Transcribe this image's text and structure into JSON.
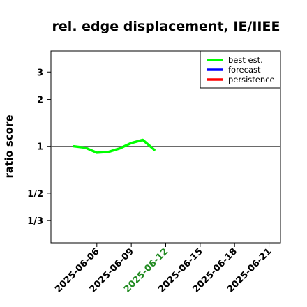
{
  "chart_data": {
    "type": "line",
    "title": "rel. edge displacement, IE/IIEE",
    "xlabel": "",
    "ylabel": "ratio score",
    "y_scale": "log",
    "y_ticks": [
      {
        "value": 3,
        "label": "3"
      },
      {
        "value": 2,
        "label": "2"
      },
      {
        "value": 1,
        "label": "1"
      },
      {
        "value": 0.5,
        "label": "1/2"
      },
      {
        "value": 0.3333,
        "label": "1/3"
      }
    ],
    "ylim": [
      0.24,
      4.1
    ],
    "xlim": [
      "2025-06-02",
      "2025-06-22"
    ],
    "x_ticks": [
      {
        "date": "2025-06-06",
        "label": "2025-06-06",
        "color": "#000000"
      },
      {
        "date": "2025-06-09",
        "label": "2025-06-09",
        "color": "#000000"
      },
      {
        "date": "2025-06-12",
        "label": "2025-06-12",
        "color": "#228B22"
      },
      {
        "date": "2025-06-15",
        "label": "2025-06-15",
        "color": "#000000"
      },
      {
        "date": "2025-06-18",
        "label": "2025-06-18",
        "color": "#000000"
      },
      {
        "date": "2025-06-21",
        "label": "2025-06-21",
        "color": "#000000"
      }
    ],
    "reference_line": 1,
    "legend_position": "top-right",
    "series": [
      {
        "name": "best est.",
        "color": "#00ff00",
        "x": [
          "2025-06-04",
          "2025-06-05",
          "2025-06-06",
          "2025-06-07",
          "2025-06-08",
          "2025-06-09",
          "2025-06-10",
          "2025-06-11"
        ],
        "values": [
          1.0,
          0.98,
          0.91,
          0.92,
          0.97,
          1.05,
          1.1,
          0.95
        ]
      },
      {
        "name": "forecast",
        "color": "#0000ff",
        "x": [],
        "values": []
      },
      {
        "name": "persistence",
        "color": "#ff0000",
        "x": [],
        "values": []
      }
    ]
  }
}
